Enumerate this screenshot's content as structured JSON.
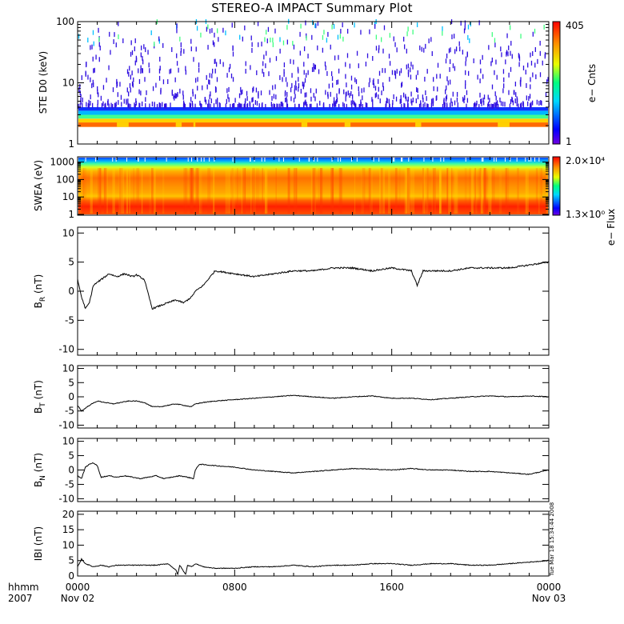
{
  "title": "STEREO-A IMPACT Summary Plot",
  "timestamp_note": "Tue Mar 18 15:34:44 2008",
  "colors": {
    "axis": "#000000",
    "trace": "#000000",
    "background": "#ffffff"
  },
  "chart_data": [
    {
      "type": "heatmap",
      "name": "ste",
      "ylabel": "STE D0 (keV)",
      "yscale": "log",
      "ylim": [
        1,
        100
      ],
      "yticks": [
        1,
        10,
        100
      ],
      "colorbar": {
        "label": "e− Cnts",
        "min_label": "1",
        "max_label": "405",
        "min": 1,
        "max": 405
      },
      "xlim": [
        0,
        24
      ]
    },
    {
      "type": "heatmap",
      "name": "swea",
      "ylabel": "SWEA (eV)",
      "yscale": "log",
      "ylim": [
        0.9,
        2000
      ],
      "yticks": [
        1,
        10,
        100,
        1000
      ],
      "colorbar": {
        "label": "e− Flux",
        "min_label": "1.3×10⁰",
        "max_label": "2.0×10⁴",
        "min": 1.3,
        "max": 20000
      },
      "xlim": [
        0,
        24
      ]
    },
    {
      "type": "line",
      "name": "br",
      "ylabel": "B",
      "ylabel_sub": "R",
      "ylabel_unit": " (nT)",
      "ylim": [
        -11,
        11
      ],
      "yticks": [
        -10,
        -5,
        0,
        5,
        10
      ],
      "xlim": [
        0,
        24
      ],
      "x": [
        0,
        0.2,
        0.4,
        0.6,
        0.8,
        1.2,
        1.6,
        2.0,
        2.4,
        2.8,
        3.0,
        3.4,
        3.8,
        4.2,
        4.6,
        5.0,
        5.4,
        5.8,
        6.0,
        6.4,
        7.0,
        8.0,
        9.0,
        10.0,
        11.0,
        12.0,
        13.0,
        14.0,
        15.0,
        16.0,
        17.0,
        17.3,
        17.6,
        18.0,
        19.0,
        20.0,
        21.0,
        22.0,
        23.0,
        24.0
      ],
      "y": [
        2,
        -1,
        -3,
        -2,
        1,
        2,
        3,
        2.5,
        3,
        2.5,
        2.8,
        2,
        -3,
        -2.5,
        -2,
        -1.5,
        -2,
        -1,
        0,
        1,
        3.5,
        3,
        2.5,
        3,
        3.5,
        3.5,
        4,
        4,
        3.5,
        4,
        3.5,
        1,
        3.5,
        3.5,
        3.5,
        4,
        4,
        4,
        4.5,
        5
      ]
    },
    {
      "type": "line",
      "name": "bt",
      "ylabel": "B",
      "ylabel_sub": "T",
      "ylabel_unit": " (nT)",
      "ylim": [
        -11,
        11
      ],
      "yticks": [
        -10,
        -5,
        0,
        5,
        10
      ],
      "xlim": [
        0,
        24
      ],
      "x": [
        0,
        0.2,
        0.4,
        0.6,
        1.0,
        1.4,
        1.8,
        2.2,
        2.6,
        3.0,
        3.4,
        3.8,
        4.2,
        4.6,
        5.0,
        5.4,
        5.8,
        6.0,
        6.4,
        7.0,
        8.0,
        9.0,
        10.0,
        11.0,
        12.0,
        13.0,
        14.0,
        15.0,
        16.0,
        17.0,
        18.0,
        19.0,
        20.0,
        21.0,
        22.0,
        23.0,
        24.0
      ],
      "y": [
        -3,
        -5,
        -4,
        -3,
        -1.5,
        -2,
        -2.5,
        -2,
        -1.5,
        -1.5,
        -2,
        -3.5,
        -3.5,
        -3,
        -2.5,
        -3,
        -3.5,
        -2.5,
        -2,
        -1.5,
        -1,
        -0.5,
        0,
        0.5,
        0,
        -0.5,
        0,
        0.3,
        -0.5,
        -0.5,
        -1,
        -0.5,
        0,
        0.3,
        0,
        0.3,
        0
      ]
    },
    {
      "type": "line",
      "name": "bn",
      "ylabel": "B",
      "ylabel_sub": "N",
      "ylabel_unit": " (nT)",
      "ylim": [
        -11,
        11
      ],
      "yticks": [
        -10,
        -5,
        0,
        5,
        10
      ],
      "xlim": [
        0,
        24
      ],
      "x": [
        0,
        0.2,
        0.4,
        0.6,
        0.8,
        1.0,
        1.2,
        1.6,
        2.0,
        2.4,
        2.8,
        3.2,
        3.6,
        4.0,
        4.4,
        4.8,
        5.2,
        5.6,
        5.9,
        6.0,
        6.2,
        7.0,
        8.0,
        9.0,
        10.0,
        11.0,
        12.0,
        13.0,
        14.0,
        15.0,
        16.0,
        17.0,
        18.0,
        19.0,
        20.0,
        21.0,
        22.0,
        23.0,
        24.0
      ],
      "y": [
        -2,
        -3,
        1,
        2,
        2.5,
        1.5,
        -2.5,
        -2,
        -2.5,
        -2,
        -2.5,
        -3,
        -2.5,
        -2,
        -3,
        -2.5,
        -2,
        -2.5,
        -3,
        0,
        2,
        1.5,
        1,
        0,
        -0.5,
        -1,
        -0.5,
        0,
        0.5,
        0.3,
        0,
        0.5,
        0,
        0,
        -0.5,
        -0.5,
        -1,
        -1.5,
        0
      ]
    },
    {
      "type": "line",
      "name": "bmag",
      "ylabel": "IBI (nT)",
      "ylim": [
        0,
        21
      ],
      "yticks": [
        0,
        5,
        10,
        15,
        20
      ],
      "xlim": [
        0,
        24
      ],
      "x": [
        0,
        0.2,
        0.4,
        0.8,
        1.2,
        1.6,
        2.0,
        3.0,
        4.0,
        4.6,
        5.0,
        5.1,
        5.2,
        5.5,
        5.6,
        5.8,
        6.0,
        6.4,
        7.0,
        8.0,
        9.0,
        10.0,
        11.0,
        12.0,
        13.0,
        14.0,
        15.0,
        16.0,
        17.0,
        18.0,
        19.0,
        20.0,
        21.0,
        22.0,
        23.0,
        24.0
      ],
      "y": [
        3,
        5.5,
        4,
        3,
        3.5,
        3,
        3.5,
        3.5,
        3.5,
        4,
        2,
        0.5,
        3.5,
        0.5,
        3.5,
        3,
        4,
        3,
        2.5,
        2.5,
        3,
        3,
        3.5,
        3,
        3.5,
        3.5,
        4,
        4,
        3.5,
        4,
        4,
        3.5,
        3.5,
        4,
        4.5,
        5
      ]
    }
  ],
  "xaxis": {
    "left_labels": [
      "hhmm",
      "2007"
    ],
    "ticks": [
      {
        "label": "0000",
        "sub": "Nov 02"
      },
      {
        "label": "0800",
        "sub": ""
      },
      {
        "label": "1600",
        "sub": ""
      },
      {
        "label": "0000",
        "sub": "Nov 03"
      }
    ]
  }
}
